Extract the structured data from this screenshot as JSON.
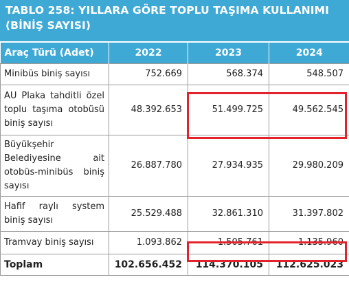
{
  "title": "TABLO 258: YILLARA GÖRE TOPLU TAŞIMA KULLANIMI (BİNİŞ SAYISI)",
  "table": {
    "headers": [
      "Araç Türü (Adet)",
      "2022",
      "2023",
      "2024"
    ],
    "rows": [
      {
        "label": "Minibüs biniş sayısı",
        "values": [
          "752.669",
          "568.374",
          "548.507"
        ]
      },
      {
        "label": "AU Plaka tahditli özel toplu taşıma otobüsü biniş sayısı",
        "values": [
          "48.392.653",
          "51.499.725",
          "49.562.545"
        ]
      },
      {
        "label": "Büyükşehir Belediyesine ait otobüs-minibüs biniş sayısı",
        "values": [
          "26.887.780",
          "27.934.935",
          "29.980.209"
        ]
      },
      {
        "label": "Hafif raylı system biniş sayısı",
        "values": [
          "25.529.488",
          "32.861.310",
          "31.397.802"
        ]
      },
      {
        "label": "Tramvay biniş sayısı",
        "values": [
          "1.093.862",
          "1.505.761",
          "1.135.960"
        ]
      }
    ],
    "total": {
      "label": "Toplam",
      "values": [
        "102.656.452",
        "114.370.105",
        "112.625.023"
      ]
    }
  },
  "colors": {
    "header_bg": "#3fa9d6",
    "header_text": "#ffffff",
    "highlight": "#e3232b"
  }
}
